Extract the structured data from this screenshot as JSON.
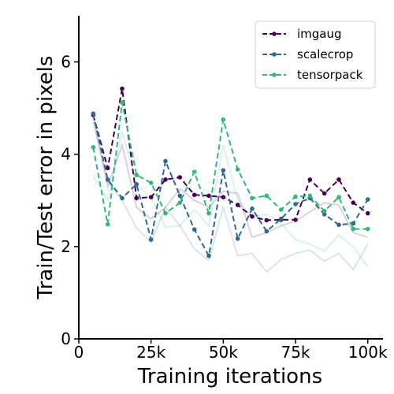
{
  "chart_data": {
    "type": "line",
    "xlabel": "Training iterations",
    "ylabel": "Train/Test error in pixels",
    "xlim": [
      0,
      105000
    ],
    "ylim": [
      0,
      7
    ],
    "x_ticks": [
      0,
      25000,
      50000,
      75000,
      100000
    ],
    "x_tick_labels": [
      "0",
      "25k",
      "50k",
      "75k",
      "100k"
    ],
    "y_ticks": [
      0,
      2,
      4,
      6
    ],
    "y_tick_labels": [
      "0",
      "2",
      "4",
      "6"
    ],
    "grid": false,
    "legend_position": "top-right",
    "x": [
      5000,
      10000,
      15000,
      20000,
      25000,
      30000,
      35000,
      40000,
      45000,
      50000,
      55000,
      60000,
      65000,
      70000,
      75000,
      80000,
      85000,
      90000,
      95000,
      100000
    ],
    "series": [
      {
        "name": "imgaug",
        "color": "#440154",
        "style": "dashed",
        "values": [
          4.85,
          3.7,
          5.42,
          3.05,
          3.07,
          3.45,
          3.5,
          3.12,
          3.1,
          3.07,
          2.9,
          2.65,
          2.57,
          2.58,
          2.58,
          3.45,
          3.15,
          3.45,
          2.95,
          2.72
        ]
      },
      {
        "name": "scalecrop",
        "color": "#31688e",
        "style": "dashed",
        "values": [
          4.88,
          3.45,
          3.05,
          3.35,
          2.15,
          3.85,
          3.1,
          2.37,
          1.8,
          3.65,
          2.17,
          2.82,
          2.33,
          2.6,
          2.92,
          3.05,
          2.7,
          2.47,
          2.5,
          3.02
        ]
      },
      {
        "name": "tensorpack",
        "color": "#35b779",
        "style": "dashed",
        "values": [
          4.15,
          2.48,
          5.12,
          3.55,
          3.38,
          2.72,
          2.95,
          3.62,
          2.72,
          4.75,
          3.67,
          3.05,
          3.1,
          2.8,
          3.08,
          3.1,
          2.77,
          3.07,
          2.38,
          2.38
        ]
      }
    ],
    "faint_series": [
      {
        "color": "#440154",
        "values": [
          4.8,
          3.3,
          4.2,
          2.85,
          2.6,
          2.85,
          3.25,
          3.0,
          2.85,
          3.2,
          3.15,
          2.2,
          2.3,
          2.45,
          2.55,
          2.75,
          2.95,
          2.9,
          2.3,
          2.2
        ]
      },
      {
        "color": "#31688e",
        "values": [
          4.7,
          3.4,
          3.0,
          2.4,
          2.1,
          2.85,
          2.45,
          1.95,
          1.7,
          2.85,
          1.8,
          1.85,
          1.45,
          1.72,
          1.85,
          1.92,
          1.68,
          1.85,
          1.5,
          2.05
        ]
      },
      {
        "color": "#35b779",
        "values": [
          3.55,
          3.0,
          4.5,
          3.35,
          3.05,
          2.42,
          2.45,
          2.8,
          2.45,
          4.2,
          3.0,
          2.65,
          2.7,
          2.5,
          2.15,
          2.05,
          1.9,
          2.25,
          2.0,
          1.55
        ]
      }
    ]
  }
}
